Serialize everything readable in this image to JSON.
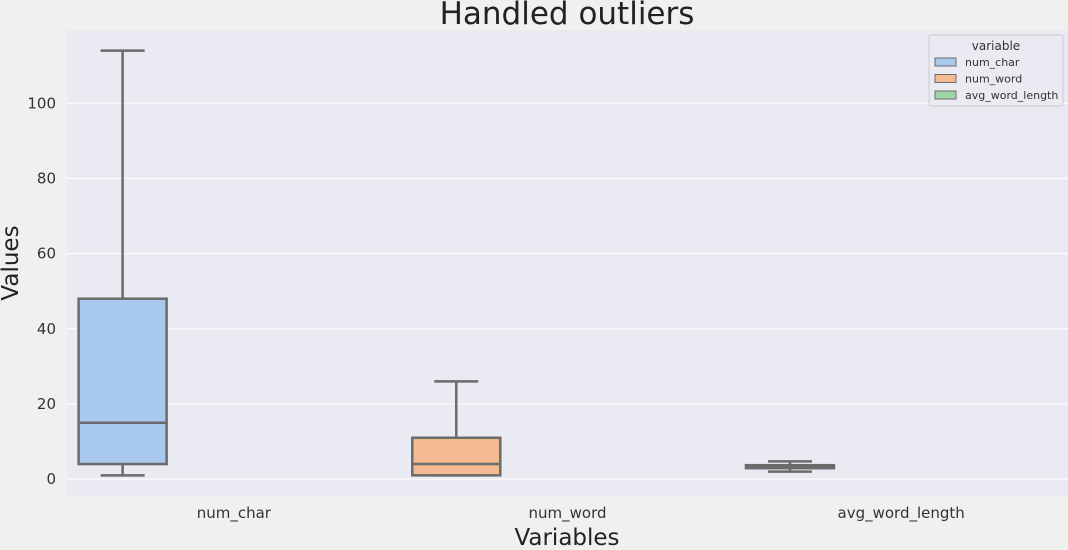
{
  "chart_data": {
    "type": "box",
    "title": "Handled outliers",
    "xlabel": "Variables",
    "ylabel": "Values",
    "ylim": [
      -4.5,
      119.5
    ],
    "yticks": [
      0,
      20,
      40,
      60,
      80,
      100
    ],
    "categories": [
      "num_char",
      "num_word",
      "avg_word_length"
    ],
    "series": [
      {
        "name": "num_char",
        "color": "#a9c8ee",
        "whisker_low": 1,
        "q1": 4,
        "median": 15,
        "q3": 48,
        "whisker_high": 114
      },
      {
        "name": "num_word",
        "color": "#f4bb90",
        "whisker_low": 1,
        "q1": 1,
        "median": 4,
        "q3": 11,
        "whisker_high": 26
      },
      {
        "name": "avg_word_length",
        "color": "#9fd6a8",
        "whisker_low": 2,
        "q1": 2.9,
        "median": 3.3,
        "q3": 3.7,
        "whisker_high": 4.7
      }
    ],
    "legend": {
      "title": "variable",
      "position": "top-right"
    },
    "grid": true,
    "style": {
      "plot_bg": "#eaeaf2",
      "grid_color": "#ffffff",
      "box_edge": "#6b6b6b"
    }
  }
}
